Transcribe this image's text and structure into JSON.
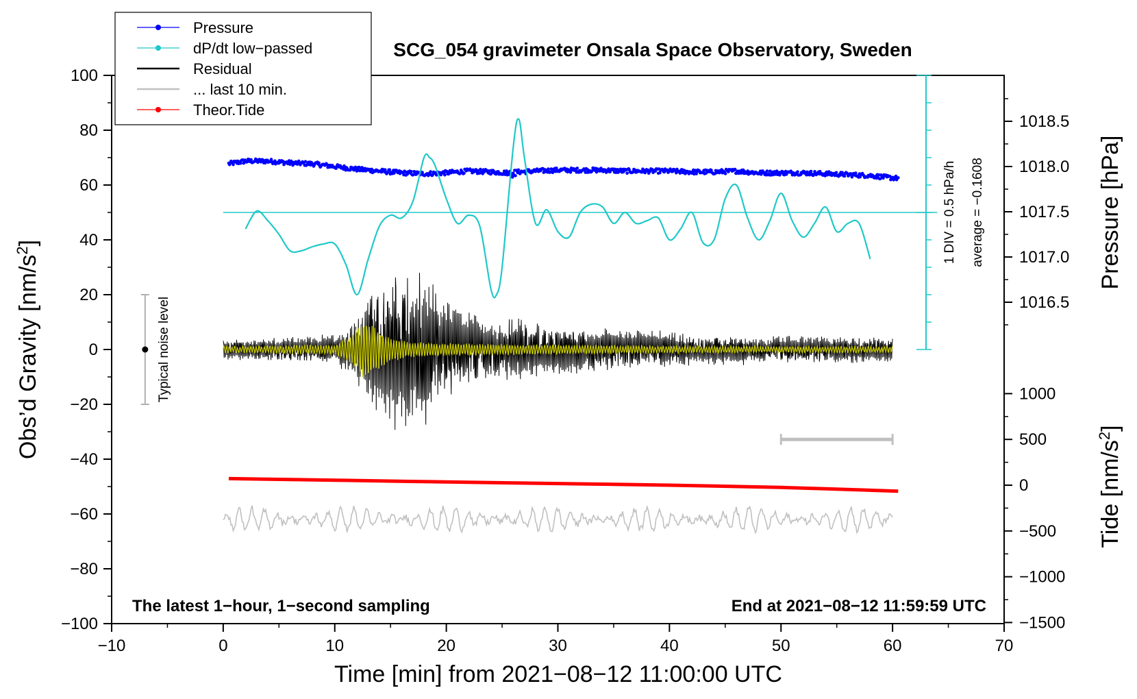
{
  "chart_data": {
    "type": "line",
    "title": "SCG_054 gravimeter Onsala Space Observatory, Sweden",
    "xlabel": "Time [min] from 2021−08−12 11:00:00 UTC",
    "ylabel_left": "Obs’d Gravity [nm/s",
    "ylabel_left_sup": "2",
    "ylabel_left_close": "]",
    "ylabel_right_pressure": "Pressure [hPa]",
    "ylabel_right_tide": "Tide [nm/s",
    "ylabel_right_tide_sup": "2",
    "ylabel_right_tide_close": "]",
    "xlim": [
      -10,
      70
    ],
    "ylim_left": [
      -100,
      100
    ],
    "x_ticks": [
      "−10",
      "0",
      "10",
      "20",
      "30",
      "40",
      "50",
      "60",
      "70"
    ],
    "y_left_ticks": [
      "−100",
      "−80",
      "−60",
      "−40",
      "−20",
      "0",
      "20",
      "40",
      "60",
      "80",
      "100"
    ],
    "pressure_ticks": [
      {
        "value": 1016.5,
        "label": "1016.5"
      },
      {
        "value": 1017.0,
        "label": "1017.0"
      },
      {
        "value": 1017.5,
        "label": "1017.5"
      },
      {
        "value": 1018.0,
        "label": "1018.0"
      },
      {
        "value": 1018.5,
        "label": "1018.5"
      }
    ],
    "tide_ticks": [
      {
        "value": 1000,
        "label": "1000"
      },
      {
        "value": 500,
        "label": "500"
      },
      {
        "value": 0,
        "label": "0"
      },
      {
        "value": -500,
        "label": "−500"
      },
      {
        "value": -1000,
        "label": "−1000"
      },
      {
        "value": -1500,
        "label": "−1500"
      }
    ],
    "footer_left": "The latest 1−hour, 1−second sampling",
    "footer_right": "End at 2021−08−12 11:59:59 UTC",
    "noise_label": "Typical noise level",
    "noise_range": [
      -20,
      20
    ],
    "noise_x": -7,
    "dpdt_scale_label": "1 DIV = 0.5 hPa/h",
    "dpdt_average_label": "average = −0.1608",
    "legend": [
      {
        "label": "Pressure",
        "color": "#0000ff",
        "marker": true
      },
      {
        "label": "dP/dt low−passed",
        "color": "#20c8c8",
        "marker": true
      },
      {
        "label": "Residual",
        "color": "#000000",
        "marker": false
      },
      {
        "label": "... last 10 min.",
        "color": "#c0c0c0",
        "marker": false
      },
      {
        "label": "Theor.Tide",
        "color": "#ff0000",
        "marker": true
      }
    ],
    "colors": {
      "pressure": "#0000ff",
      "dpdt": "#20c8c8",
      "residual": "#000000",
      "filtered": "#c8c800",
      "last10": "#c0c0c0",
      "tide": "#ff0000"
    },
    "series": [
      {
        "name": "Pressure",
        "units": "hPa",
        "x": [
          0.5,
          2,
          4,
          6,
          8,
          10,
          12,
          14,
          16,
          18,
          20,
          22,
          24,
          25.5,
          26.5,
          28,
          30,
          32,
          34,
          36,
          38,
          40,
          42,
          44,
          46,
          48,
          50,
          52,
          54,
          56,
          58,
          59.5,
          60.5
        ],
        "values": [
          1018.03,
          1018.06,
          1018.06,
          1018.04,
          1018.03,
          1018.0,
          1017.97,
          1017.95,
          1017.93,
          1017.92,
          1017.93,
          1017.95,
          1017.94,
          1017.93,
          1017.94,
          1017.95,
          1017.96,
          1017.96,
          1017.96,
          1017.95,
          1017.95,
          1017.95,
          1017.94,
          1017.94,
          1017.95,
          1017.93,
          1017.93,
          1017.93,
          1017.92,
          1017.91,
          1017.9,
          1017.88,
          1017.87
        ]
      },
      {
        "name": "dP/dt low-passed",
        "units": "gravity-axis position (nm/s^2 frame)",
        "baseline_y": 50,
        "x": [
          2,
          3,
          4,
          5,
          6,
          7,
          8,
          9,
          10,
          11,
          12,
          13,
          14,
          15,
          16,
          17,
          18,
          18.5,
          19,
          20,
          21,
          22,
          23,
          24,
          24.5,
          25,
          26,
          26.5,
          27,
          28,
          29,
          30,
          31,
          32,
          33,
          34,
          35,
          36,
          37,
          38,
          39,
          40,
          41,
          42,
          43,
          44,
          45,
          46,
          47,
          48,
          49,
          50,
          51,
          52,
          53,
          54,
          55,
          56,
          57,
          58
        ],
        "values": [
          44,
          50.5,
          47,
          42,
          36,
          36,
          37.5,
          38.5,
          38.5,
          31,
          20,
          33,
          45,
          49,
          48,
          54,
          70,
          70,
          67,
          55,
          46,
          49,
          45,
          22,
          20,
          30,
          74,
          84,
          70,
          46,
          51,
          43,
          41,
          50,
          53,
          52,
          46,
          50,
          46,
          47,
          48,
          40,
          44,
          50,
          39,
          40,
          55,
          60,
          48,
          40,
          47,
          57,
          47,
          41,
          46,
          52,
          43,
          46,
          46,
          33
        ]
      },
      {
        "name": "Residual",
        "units": "nm/s^2",
        "envelope_x": [
          0,
          2,
          4,
          6,
          8,
          10,
          11,
          12,
          13,
          14,
          15,
          16,
          17,
          18,
          19,
          20,
          21,
          22,
          23,
          24,
          25,
          26,
          27,
          28,
          30,
          32,
          34,
          36,
          38,
          40,
          42,
          44,
          46,
          48,
          50,
          52,
          54,
          56,
          58,
          60
        ],
        "envelope_amplitude": [
          4,
          4,
          4,
          5,
          5,
          6,
          8,
          12,
          22,
          25,
          30,
          31,
          27,
          31,
          23,
          18,
          17,
          15,
          13,
          11,
          11,
          12,
          12,
          10,
          9,
          9,
          8,
          8,
          7,
          7,
          6,
          6,
          6,
          5,
          5,
          5,
          5,
          5,
          5,
          5
        ]
      },
      {
        "name": "Residual low-passed",
        "units": "nm/s^2",
        "envelope_x": [
          0,
          10,
          11.5,
          12.5,
          13.5,
          15,
          17,
          20,
          30,
          40,
          50,
          60
        ],
        "envelope_amplitude": [
          1,
          1.5,
          5,
          10,
          8,
          4,
          2.5,
          2,
          1.5,
          1.2,
          1,
          1
        ]
      },
      {
        "name": "... last 10 min.",
        "units": "nm/s^2",
        "offset": -62,
        "amplitude": 4
      },
      {
        "name": "Theor.Tide",
        "units": "nm/s^2 (tide axis)",
        "x": [
          0.5,
          10,
          20,
          30,
          40,
          50,
          60.5
        ],
        "values": [
          72,
          55,
          35,
          18,
          0,
          -25,
          -65
        ]
      }
    ],
    "grey_bar": {
      "x": [
        50,
        60
      ],
      "y": 500,
      "units": "tide axis"
    },
    "grid": false
  }
}
